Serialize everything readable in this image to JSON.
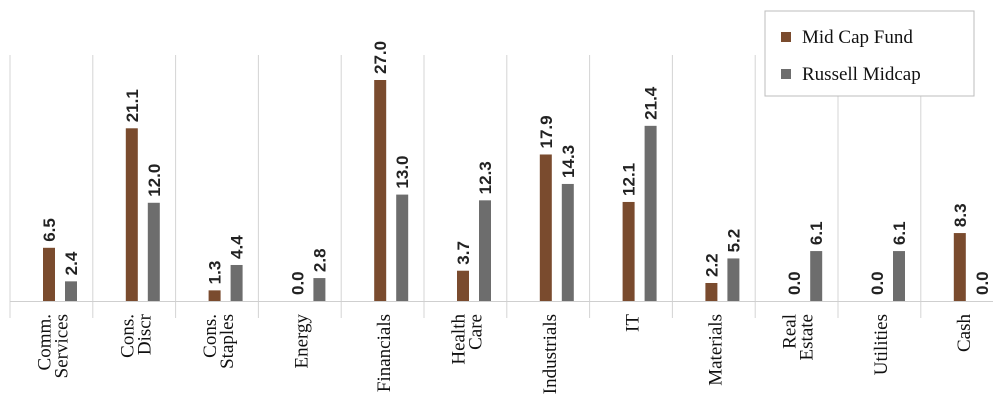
{
  "chart_data": {
    "type": "bar",
    "categories": [
      [
        "Comm.",
        "Services"
      ],
      [
        "Cons.",
        "Discr"
      ],
      [
        "Cons.",
        "Staples"
      ],
      [
        "Energy"
      ],
      [
        "Financials"
      ],
      [
        "Health",
        "Care"
      ],
      [
        "Industrials"
      ],
      [
        "IT"
      ],
      [
        "Materials"
      ],
      [
        "Real",
        "Estate"
      ],
      [
        "Utilities"
      ],
      [
        "Cash"
      ]
    ],
    "series": [
      {
        "name": "Mid Cap Fund",
        "color": "#7a4b2e",
        "values": [
          6.5,
          21.1,
          1.3,
          0.0,
          27.0,
          3.7,
          17.9,
          12.1,
          2.2,
          0.0,
          0.0,
          8.3
        ],
        "labels": [
          "6.5",
          "21.1",
          "1.3",
          "0.0",
          "27.0",
          "3.7",
          "17.9",
          "12.1",
          "2.2",
          "0.0",
          "0.0",
          "8.3"
        ]
      },
      {
        "name": "Russell Midcap",
        "color": "#6d6d6d",
        "values": [
          2.4,
          12.0,
          4.4,
          2.8,
          13.0,
          12.3,
          14.3,
          21.4,
          5.2,
          6.1,
          6.1,
          0.0
        ],
        "labels": [
          "2.4",
          "12.0",
          "4.4",
          "2.8",
          "13.0",
          "12.3",
          "14.3",
          "21.4",
          "5.2",
          "6.1",
          "6.1",
          "0.0"
        ]
      }
    ],
    "ylim": [
      0,
      27.0
    ],
    "grid": "vertical category separators",
    "legend": "top-right",
    "title": "",
    "xlabel": "",
    "ylabel": ""
  }
}
